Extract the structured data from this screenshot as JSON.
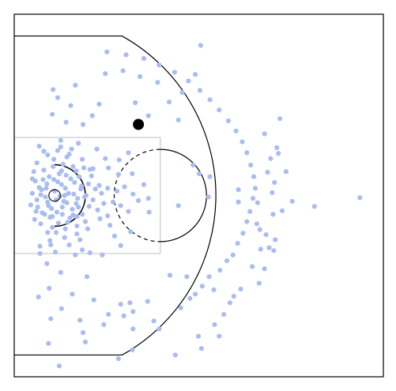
{
  "chart_data": {
    "type": "scatter",
    "title": "",
    "xlabel": "",
    "ylabel": "",
    "xlim": [
      -5.25,
      42.75
    ],
    "ylim": [
      -25,
      25
    ],
    "grid": false,
    "legend": "none",
    "court": {
      "kind": "basketball-half-court",
      "hoop": [
        0,
        0
      ],
      "hoop_radius": 0.75,
      "restricted_area_radius": 4,
      "lane": {
        "x": [
          -5.25,
          13.75
        ],
        "y": [
          -8,
          8
        ]
      },
      "free_throw_circle": {
        "center": [
          13.75,
          0
        ],
        "radius": 6
      },
      "three_point_radius": 23.75,
      "corner_three_y": 22,
      "corner_three_end_x": 8.76
    },
    "colors": {
      "shots": "#a9bdf2",
      "highlight": "#000000",
      "lines": "#000000",
      "lane": "#c9c9c9"
    },
    "highlight_point": {
      "x": 10.9,
      "y": 9.8
    },
    "shots": [
      [
        -2.3,
        -0.6
      ],
      [
        -1.7,
        0.8
      ],
      [
        -1.0,
        1.6
      ],
      [
        -0.8,
        -1.4
      ],
      [
        -0.1,
        2.2
      ],
      [
        0.3,
        -2.3
      ],
      [
        0.9,
        1.5
      ],
      [
        1.2,
        -0.8
      ],
      [
        1.8,
        0.3
      ],
      [
        2.3,
        -1.9
      ],
      [
        2.6,
        1.8
      ],
      [
        3.0,
        -0.4
      ],
      [
        3.4,
        0.9
      ],
      [
        -1.6,
        -2.4
      ],
      [
        -0.6,
        -3.0
      ],
      [
        0.6,
        3.0
      ],
      [
        1.5,
        2.8
      ],
      [
        2.0,
        -3.1
      ],
      [
        3.2,
        2.6
      ],
      [
        3.6,
        -2.6
      ],
      [
        -2.5,
        2.0
      ],
      [
        -1.2,
        -0.2
      ],
      [
        0.0,
        0.6
      ],
      [
        0.7,
        -0.1
      ],
      [
        1.4,
        1.0
      ],
      [
        2.5,
        0.2
      ],
      [
        -0.4,
        -1.8
      ],
      [
        1.0,
        -1.6
      ],
      [
        2.8,
        -1.1
      ],
      [
        -2.0,
        1.1
      ],
      [
        -1.4,
        3.5
      ],
      [
        -0.2,
        4.0
      ],
      [
        1.1,
        4.3
      ],
      [
        2.4,
        4.0
      ],
      [
        3.8,
        3.8
      ],
      [
        -1.8,
        -3.9
      ],
      [
        -0.3,
        -4.4
      ],
      [
        1.4,
        -4.6
      ],
      [
        2.9,
        -4.2
      ],
      [
        4.0,
        -3.6
      ],
      [
        4.1,
        0.0
      ],
      [
        4.4,
        1.6
      ],
      [
        4.5,
        -1.5
      ],
      [
        4.8,
        2.7
      ],
      [
        5.0,
        -0.6
      ],
      [
        5.3,
        0.9
      ],
      [
        5.6,
        -2.0
      ],
      [
        5.8,
        1.4
      ],
      [
        6.1,
        0.3
      ],
      [
        6.4,
        -1.1
      ],
      [
        -2.9,
        0.3
      ],
      [
        -3.1,
        -1.3
      ],
      [
        -2.7,
        3.3
      ],
      [
        -2.6,
        -3.3
      ],
      [
        0.2,
        -5.1
      ],
      [
        1.6,
        5.3
      ],
      [
        -0.9,
        5.6
      ],
      [
        0.4,
        6.2
      ],
      [
        2.2,
        6.4
      ],
      [
        -2.0,
        6.8
      ],
      [
        3.1,
        7.2
      ],
      [
        0.8,
        7.6
      ],
      [
        -0.6,
        -6.2
      ],
      [
        1.9,
        -6.8
      ],
      [
        3.3,
        -6.1
      ],
      [
        -1.9,
        -7.0
      ],
      [
        0.1,
        -7.8
      ],
      [
        2.7,
        -8.2
      ],
      [
        4.6,
        -7.9
      ],
      [
        6.2,
        -8.2
      ],
      [
        5.5,
        6.4
      ],
      [
        7.2,
        -4.1
      ],
      [
        7.0,
        3.8
      ],
      [
        8.1,
        0.6
      ],
      [
        8.6,
        -1.4
      ],
      [
        9.1,
        1.2
      ],
      [
        10.2,
        0.2
      ],
      [
        10.9,
        -0.7
      ],
      [
        11.6,
        1.5
      ],
      [
        12.2,
        -0.4
      ],
      [
        6.6,
        5.1
      ],
      [
        7.8,
        -5.6
      ],
      [
        8.4,
        4.9
      ],
      [
        9.9,
        -5.0
      ],
      [
        9.6,
        5.9
      ],
      [
        3.7,
        9.8
      ],
      [
        4.9,
        11.0
      ],
      [
        2.1,
        12.4
      ],
      [
        5.8,
        12.6
      ],
      [
        0.4,
        13.5
      ],
      [
        -0.2,
        14.6
      ],
      [
        2.7,
        15.2
      ],
      [
        -1.0,
        -9.4
      ],
      [
        0.8,
        -10.6
      ],
      [
        4.2,
        -11.2
      ],
      [
        -0.7,
        -12.8
      ],
      [
        2.3,
        -13.6
      ],
      [
        5.1,
        -14.4
      ],
      [
        -2.1,
        -14.0
      ],
      [
        0.9,
        -15.6
      ],
      [
        -0.5,
        -17.0
      ],
      [
        3.3,
        -17.2
      ],
      [
        7.0,
        -16.4
      ],
      [
        8.6,
        -15.0
      ],
      [
        9.8,
        -14.8
      ],
      [
        9.0,
        -16.6
      ],
      [
        10.2,
        -16.0
      ],
      [
        12.1,
        -14.6
      ],
      [
        12.9,
        -17.3
      ],
      [
        10.2,
        -18.4
      ],
      [
        6.4,
        -17.8
      ],
      [
        3.7,
        -18.9
      ],
      [
        4.0,
        -20.2
      ],
      [
        -0.8,
        -20.4
      ],
      [
        0.6,
        -23.5
      ],
      [
        10.1,
        -21.3
      ],
      [
        13.6,
        -18.4
      ],
      [
        15.0,
        -11.0
      ],
      [
        17.2,
        -11.2
      ],
      [
        16.4,
        -15.5
      ],
      [
        17.6,
        -14.2
      ],
      [
        18.3,
        -13.6
      ],
      [
        19.2,
        -12.5
      ],
      [
        20.1,
        -11.2
      ],
      [
        20.7,
        -13.0
      ],
      [
        21.5,
        -10.3
      ],
      [
        22.4,
        -9.0
      ],
      [
        23.2,
        -8.2
      ],
      [
        23.8,
        -6.6
      ],
      [
        24.5,
        -5.2
      ],
      [
        25.0,
        -3.6
      ],
      [
        25.4,
        -2.2
      ],
      [
        25.8,
        -0.4
      ],
      [
        26.1,
        1.0
      ],
      [
        25.9,
        2.6
      ],
      [
        25.5,
        4.2
      ],
      [
        25.0,
        5.9
      ],
      [
        24.4,
        7.4
      ],
      [
        23.6,
        8.9
      ],
      [
        22.6,
        10.3
      ],
      [
        21.4,
        11.8
      ],
      [
        20.2,
        13.2
      ],
      [
        18.9,
        14.5
      ],
      [
        17.4,
        15.8
      ],
      [
        15.6,
        17.0
      ],
      [
        13.6,
        18.0
      ],
      [
        11.6,
        18.9
      ],
      [
        9.3,
        19.4
      ],
      [
        6.8,
        19.8
      ],
      [
        19.0,
        20.7
      ],
      [
        18.3,
        16.7
      ],
      [
        15.7,
        -22.0
      ],
      [
        18.7,
        -19.4
      ],
      [
        20.8,
        -17.8
      ],
      [
        22.0,
        -16.4
      ],
      [
        22.8,
        -14.8
      ],
      [
        24.2,
        -12.9
      ],
      [
        26.6,
        -12.1
      ],
      [
        27.3,
        -10.1
      ],
      [
        26.8,
        -7.4
      ],
      [
        27.5,
        -5.4
      ],
      [
        26.4,
        -1.0
      ],
      [
        28.4,
        -2.6
      ],
      [
        28.3,
        0.4
      ],
      [
        28.6,
        1.8
      ],
      [
        27.7,
        3.2
      ],
      [
        28.1,
        5.1
      ],
      [
        28.9,
        6.6
      ],
      [
        27.3,
        8.5
      ],
      [
        29.3,
        10.6
      ],
      [
        29.1,
        5.8
      ],
      [
        29.6,
        -2.1
      ],
      [
        30.9,
        -0.8
      ],
      [
        30.1,
        3.3
      ],
      [
        33.8,
        -1.5
      ],
      [
        39.7,
        -0.3
      ],
      [
        18.0,
        4.2
      ],
      [
        20.0,
        -0.2
      ],
      [
        12.3,
        -2.3
      ],
      [
        23.9,
        -0.9
      ],
      [
        26.3,
        -3.9
      ],
      [
        28.7,
        -6.1
      ],
      [
        28.5,
        -7.6
      ],
      [
        27.9,
        -7.2
      ],
      [
        26.7,
        -4.7
      ],
      [
        23.9,
        0.8
      ],
      [
        20.2,
        2.6
      ],
      [
        18.8,
        3.0
      ],
      [
        16.1,
        -1.4
      ],
      [
        8.6,
        -6.9
      ],
      [
        -0.5,
        -6.8
      ],
      [
        -1.9,
        -8.0
      ],
      [
        3.6,
        -7.5
      ],
      [
        3.9,
        -0.2
      ],
      [
        4.6,
        3.6
      ],
      [
        6.9,
        -2.8
      ],
      [
        1.3,
        0.0
      ],
      [
        -2.2,
        -1.6
      ],
      [
        -1.3,
        -2.6
      ],
      [
        -2.9,
        2.3
      ],
      [
        -1.8,
        0.1
      ],
      [
        -0.9,
        -0.9
      ],
      [
        0.2,
        -0.6
      ],
      [
        0.4,
        1.9
      ],
      [
        1.6,
        -1.0
      ],
      [
        2.1,
        2.3
      ],
      [
        2.4,
        -2.7
      ],
      [
        -0.7,
        2.6
      ],
      [
        0.9,
        3.4
      ],
      [
        1.7,
        -3.7
      ],
      [
        3.1,
        -1.6
      ],
      [
        3.5,
        1.3
      ],
      [
        -2.4,
        -2.2
      ],
      [
        -1.1,
        1.0
      ],
      [
        -0.3,
        -2.9
      ],
      [
        2.8,
        3.4
      ],
      [
        1.0,
        -2.6
      ],
      [
        -1.5,
        2.2
      ],
      [
        0.5,
        -3.8
      ],
      [
        2.9,
        -2.9
      ],
      [
        -2.3,
        4.5
      ],
      [
        -0.1,
        5.0
      ],
      [
        1.9,
        5.7
      ],
      [
        3.6,
        5.0
      ],
      [
        0.8,
        6.7
      ],
      [
        -1.4,
        6.1
      ],
      [
        2.9,
        -5.3
      ],
      [
        -0.9,
        -5.1
      ],
      [
        1.3,
        -5.8
      ],
      [
        4.3,
        -4.6
      ],
      [
        6.9,
        1.0
      ],
      [
        7.6,
        -0.9
      ],
      [
        5.0,
        3.7
      ],
      [
        5.9,
        -3.2
      ],
      [
        9.6,
        -2.2
      ],
      [
        8.3,
        2.9
      ],
      [
        10.1,
        3.0
      ],
      [
        -0.3,
        11.2
      ],
      [
        1.5,
        10.1
      ],
      [
        12.2,
        11.0
      ],
      [
        10.5,
        12.8
      ],
      [
        16.1,
        10.4
      ],
      [
        14.9,
        12.9
      ],
      [
        16.6,
        14.2
      ],
      [
        13.4,
        15.6
      ],
      [
        11.1,
        16.4
      ],
      [
        8.9,
        17.2
      ],
      [
        6.6,
        16.8
      ],
      [
        19.1,
        -21.1
      ],
      [
        21.4,
        -19.4
      ],
      [
        23.3,
        -13.9
      ],
      [
        25.7,
        -9.8
      ],
      [
        8.3,
        -22.5
      ]
    ]
  }
}
